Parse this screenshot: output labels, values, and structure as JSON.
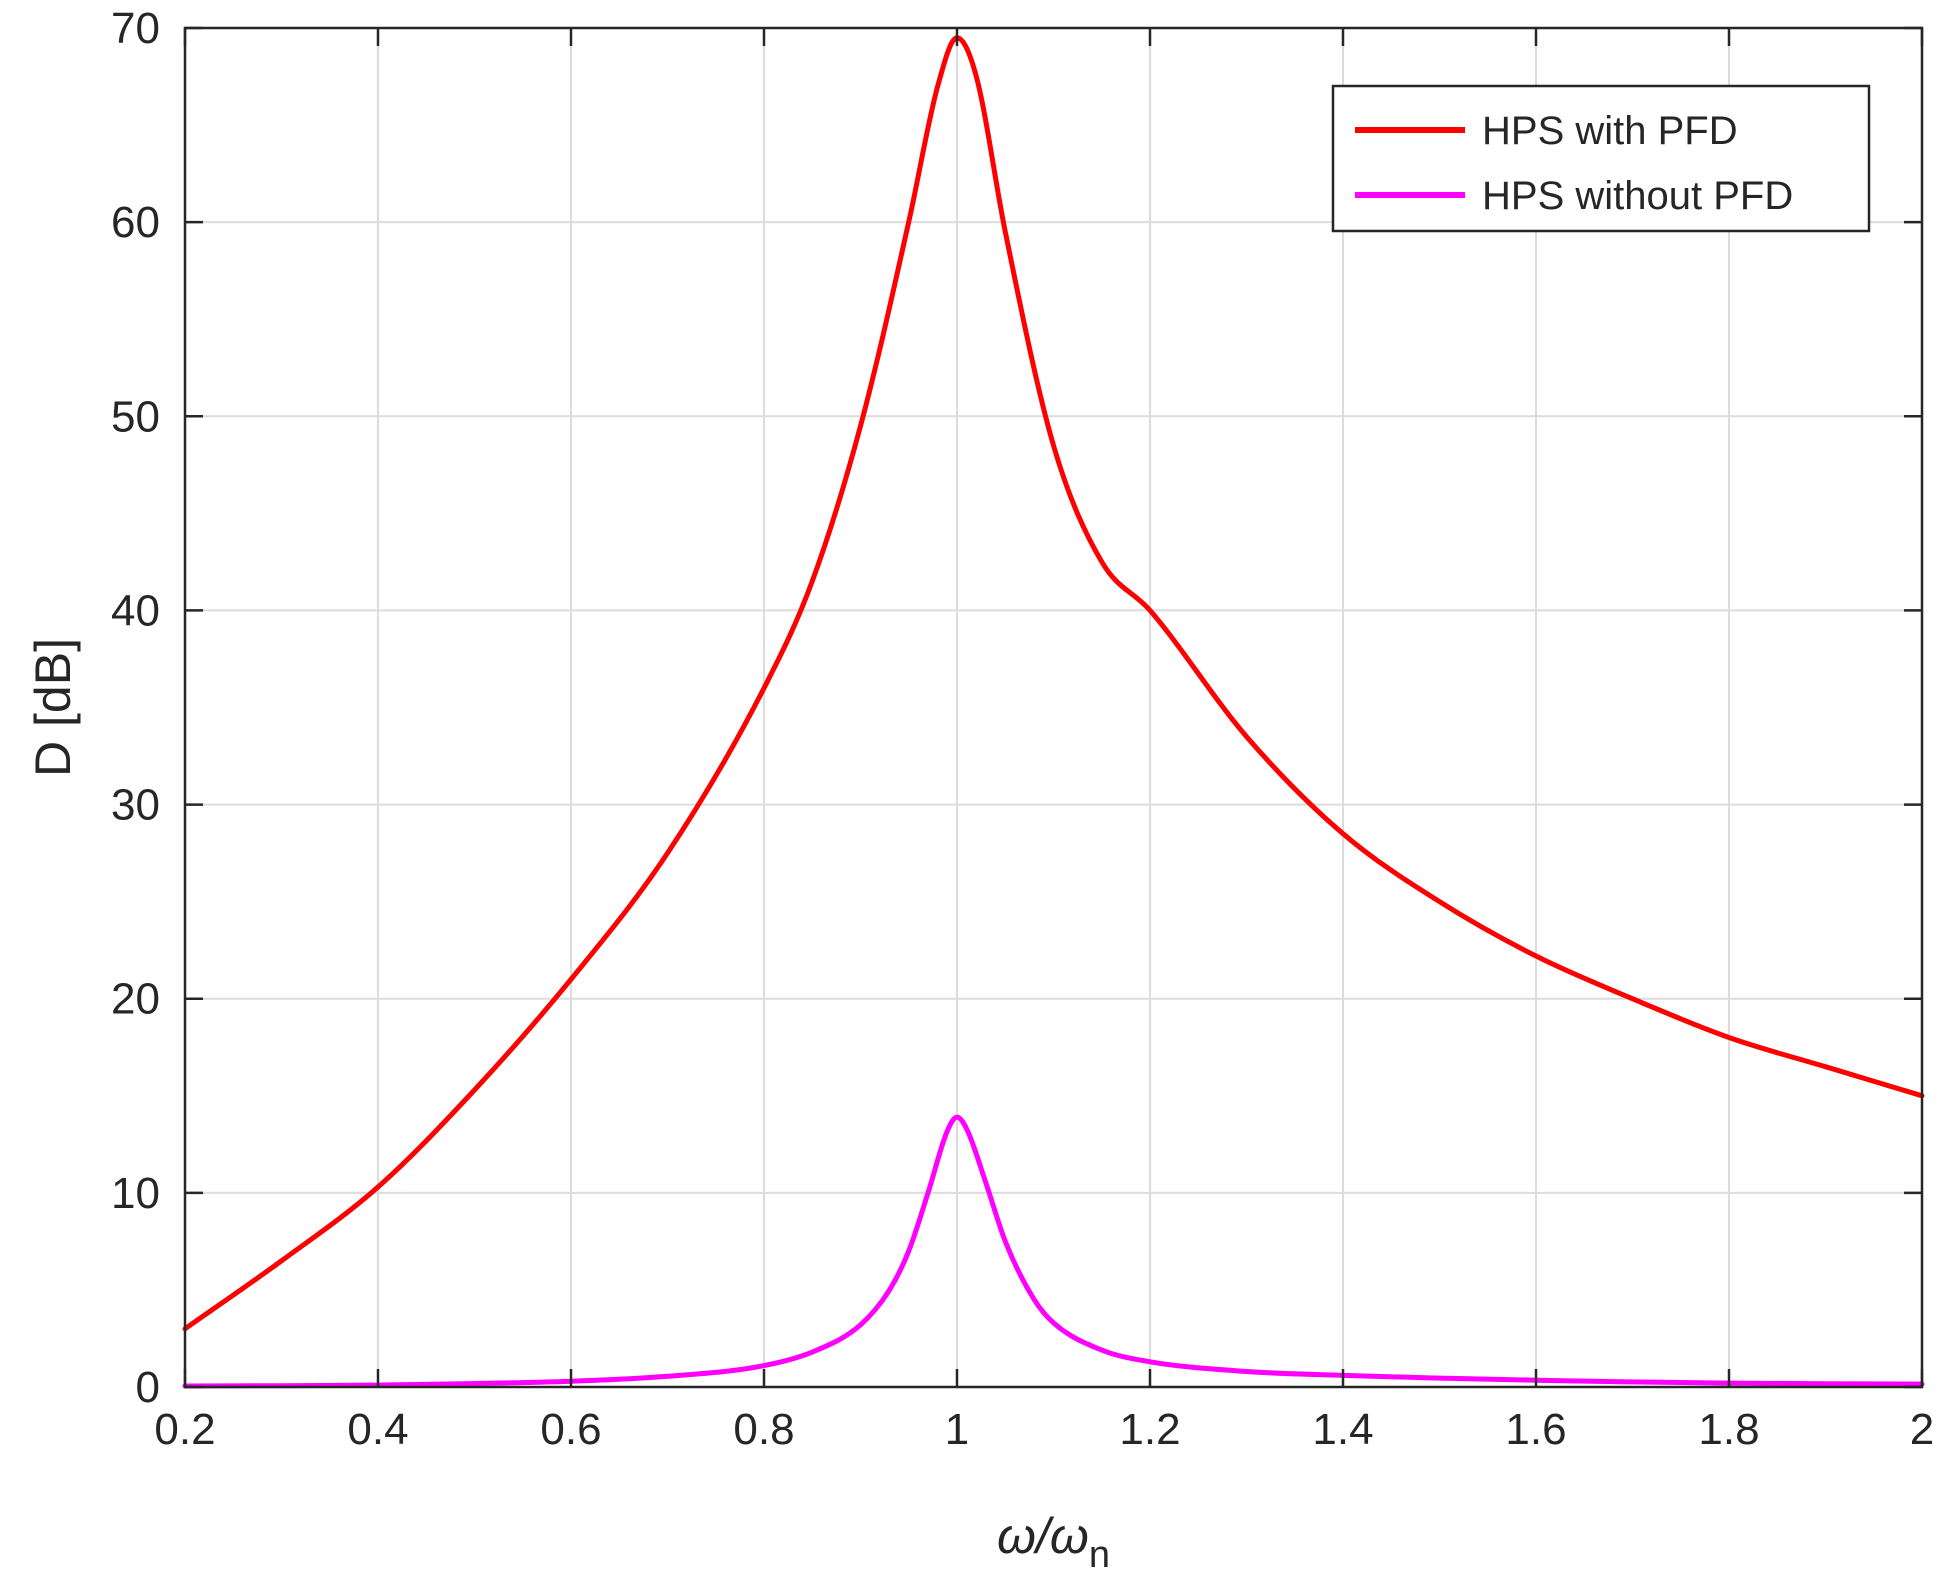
{
  "chart_data": {
    "type": "line",
    "title": "",
    "xlabel_main": "ω/ω",
    "xlabel_sub": "n",
    "ylabel": "D [dB]",
    "xlim": [
      0.2,
      2
    ],
    "ylim": [
      0,
      70
    ],
    "xticks": [
      0.2,
      0.4,
      0.6,
      0.8,
      1,
      1.2,
      1.4,
      1.6,
      1.8,
      2
    ],
    "xtick_labels": [
      "0.2",
      "0.4",
      "0.6",
      "0.8",
      "1",
      "1.2",
      "1.4",
      "1.6",
      "1.8",
      "2"
    ],
    "yticks": [
      0,
      10,
      20,
      30,
      40,
      50,
      60,
      70
    ],
    "ytick_labels": [
      "0",
      "10",
      "20",
      "30",
      "40",
      "50",
      "60",
      "70"
    ],
    "grid": true,
    "legend_position": "top-right",
    "series": [
      {
        "name": "HPS with PFD",
        "color": "#ff0000",
        "x": [
          0.2,
          0.3,
          0.4,
          0.5,
          0.6,
          0.7,
          0.8,
          0.85,
          0.9,
          0.95,
          0.98,
          1.0,
          1.02,
          1.05,
          1.1,
          1.15,
          1.2,
          1.3,
          1.4,
          1.5,
          1.6,
          1.7,
          1.8,
          1.9,
          2.0
        ],
        "values": [
          3,
          6.5,
          10.3,
          15.3,
          21,
          27.5,
          36,
          41.5,
          49.5,
          60,
          67,
          69.5,
          67.5,
          59.5,
          48.5,
          42.5,
          40,
          33.5,
          28.5,
          25,
          22.2,
          20,
          18,
          16.5,
          15
        ]
      },
      {
        "name": "HPS without PFD",
        "color": "#ff00ff",
        "x": [
          0.2,
          0.4,
          0.6,
          0.7,
          0.8,
          0.85,
          0.9,
          0.93,
          0.95,
          0.97,
          0.99,
          1.0,
          1.01,
          1.03,
          1.05,
          1.08,
          1.1,
          1.15,
          1.2,
          1.3,
          1.4,
          1.6,
          1.8,
          2.0
        ],
        "values": [
          0.05,
          0.1,
          0.3,
          0.55,
          1.1,
          1.8,
          3.2,
          5.0,
          7.0,
          10.0,
          13.2,
          13.9,
          13.3,
          10.5,
          7.5,
          4.5,
          3.3,
          1.9,
          1.3,
          0.8,
          0.6,
          0.35,
          0.2,
          0.15
        ]
      }
    ]
  }
}
